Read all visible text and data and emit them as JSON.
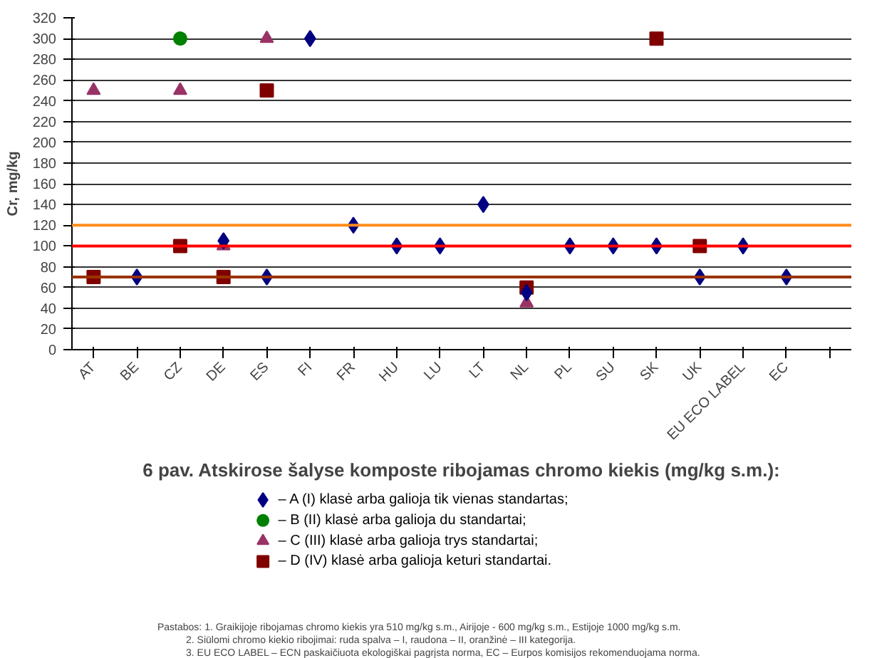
{
  "chart_data": {
    "type": "scatter",
    "title": "6 pav. Atskirose šalyse komposte ribojamas chromo kiekis (mg/kg s.m.):",
    "ylabel": "Cr, mg/kg",
    "categories": [
      "AT",
      "BE",
      "CZ",
      "DE",
      "ES",
      "FI",
      "FR",
      "HU",
      "LU",
      "LT",
      "NL",
      "PL",
      "SU",
      "SK",
      "UK",
      "EU ECO LABEL",
      "EC",
      null
    ],
    "series": [
      {
        "name": "– A (I) klasė arba galioja tik vienas standartas;",
        "color": "#000080",
        "marker": "diamond",
        "values": [
          null,
          70,
          null,
          105,
          70,
          300,
          120,
          100,
          100,
          140,
          55,
          100,
          100,
          100,
          70,
          100,
          70,
          null
        ]
      },
      {
        "name": "– B (II) klasė arba galioja du standartai;",
        "color": "#008000",
        "marker": "circle",
        "values": [
          null,
          null,
          300,
          null,
          null,
          null,
          null,
          null,
          null,
          null,
          null,
          null,
          null,
          null,
          null,
          null,
          null,
          null
        ]
      },
      {
        "name": "– C (III) klasė arba galioja trys standartai;",
        "color": "#993366",
        "marker": "triangle",
        "values": [
          250,
          null,
          250,
          100,
          300,
          null,
          null,
          null,
          null,
          null,
          45,
          null,
          null,
          null,
          null,
          null,
          null,
          null
        ]
      },
      {
        "name": "– D (IV) klasė arba galioja keturi standartai.",
        "color": "#800000",
        "marker": "square",
        "values": [
          70,
          null,
          100,
          70,
          250,
          null,
          null,
          null,
          null,
          null,
          60,
          null,
          null,
          300,
          100,
          null,
          null,
          null
        ]
      }
    ],
    "ylim": [
      0,
      320
    ],
    "yticks": [
      0,
      20,
      40,
      60,
      80,
      100,
      120,
      140,
      160,
      180,
      200,
      220,
      240,
      260,
      280,
      300,
      320
    ],
    "grid": "y",
    "legend": "bottom",
    "ref_lines": [
      {
        "axis": "y",
        "value": 120,
        "color": "#ff8c1a"
      },
      {
        "axis": "y",
        "value": 100,
        "color": "#ff0000"
      },
      {
        "axis": "y",
        "value": 70,
        "color": "#993300"
      }
    ],
    "annotations": [
      "Pastabos: 1. Graikijoje ribojamas chromo kiekis yra 510 mg/kg s.m., Airijoje - 600 mg/kg s.m., Estijoje 1000 mg/kg s.m.",
      "2. Siūlomi chromo kiekio ribojimai: ruda spalva – I, raudona – II, oranžinė – III kategorija.",
      "3. EU ECO LABEL – ECN paskaičiuota ekologiškai pagrįsta norma, EC – Eurpos komisijos rekomenduojama norma."
    ]
  }
}
